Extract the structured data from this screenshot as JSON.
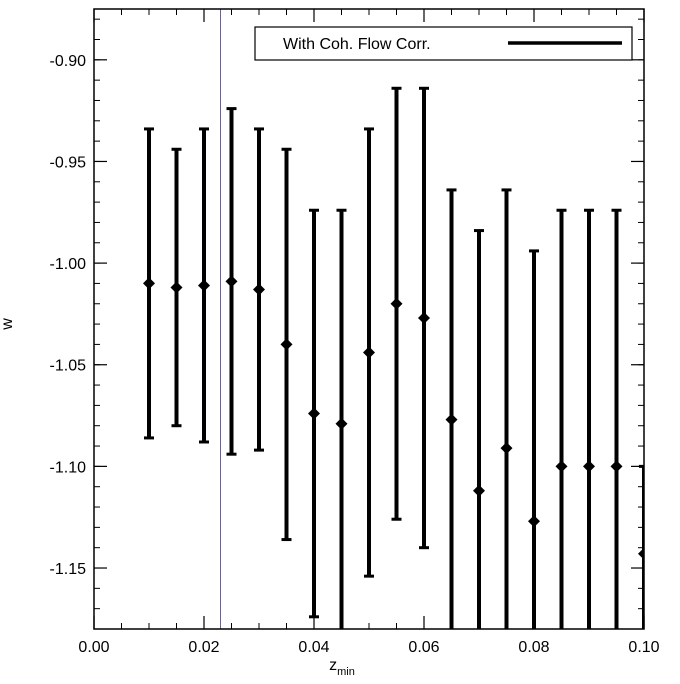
{
  "chart_data": {
    "type": "scatter",
    "title": "",
    "xlabel": "z",
    "xlabel_subscript": "min",
    "ylabel": "w",
    "xlim": [
      0.0,
      0.1
    ],
    "ylim": [
      -1.18,
      -0.875
    ],
    "x_ticks": [
      0.0,
      0.02,
      0.04,
      0.06,
      0.08,
      0.1
    ],
    "x_tick_labels": [
      "0.00",
      "0.02",
      "0.04",
      "0.06",
      "0.08",
      "0.10"
    ],
    "x_minor_step": 0.005,
    "y_ticks": [
      -0.9,
      -0.95,
      -1.0,
      -1.05,
      -1.1,
      -1.15
    ],
    "y_tick_labels": [
      "-0.90",
      "-0.95",
      "-1.00",
      "-1.05",
      "-1.10",
      "-1.15"
    ],
    "y_minor_step": 0.01,
    "grid": false,
    "reference_line": {
      "x": 0.023,
      "color": "#6a5fa8"
    },
    "legend": {
      "position": "top-right",
      "entries": [
        "With Coh. Flow Corr."
      ]
    },
    "series": [
      {
        "name": "With Coh. Flow Corr.",
        "color": "#000000",
        "points": [
          {
            "x": 0.01,
            "y": -1.01,
            "ylow": -1.086,
            "yhigh": -0.934
          },
          {
            "x": 0.015,
            "y": -1.012,
            "ylow": -1.08,
            "yhigh": -0.944
          },
          {
            "x": 0.02,
            "y": -1.011,
            "ylow": -1.088,
            "yhigh": -0.934
          },
          {
            "x": 0.025,
            "y": -1.009,
            "ylow": -1.094,
            "yhigh": -0.924
          },
          {
            "x": 0.03,
            "y": -1.013,
            "ylow": -1.092,
            "yhigh": -0.934
          },
          {
            "x": 0.035,
            "y": -1.04,
            "ylow": -1.136,
            "yhigh": -0.944
          },
          {
            "x": 0.04,
            "y": -1.074,
            "ylow": -1.174,
            "yhigh": -0.974
          },
          {
            "x": 0.045,
            "y": -1.079,
            "ylow": -1.19,
            "yhigh": -0.974
          },
          {
            "x": 0.05,
            "y": -1.044,
            "ylow": -1.154,
            "yhigh": -0.934
          },
          {
            "x": 0.055,
            "y": -1.02,
            "ylow": -1.126,
            "yhigh": -0.914
          },
          {
            "x": 0.06,
            "y": -1.027,
            "ylow": -1.14,
            "yhigh": -0.914
          },
          {
            "x": 0.065,
            "y": -1.077,
            "ylow": -1.19,
            "yhigh": -0.964
          },
          {
            "x": 0.07,
            "y": -1.112,
            "ylow": -1.19,
            "yhigh": -0.984
          },
          {
            "x": 0.075,
            "y": -1.091,
            "ylow": -1.19,
            "yhigh": -0.964
          },
          {
            "x": 0.08,
            "y": -1.127,
            "ylow": -1.19,
            "yhigh": -0.994
          },
          {
            "x": 0.085,
            "y": -1.1,
            "ylow": -1.19,
            "yhigh": -0.974
          },
          {
            "x": 0.09,
            "y": -1.1,
            "ylow": -1.19,
            "yhigh": -0.974
          },
          {
            "x": 0.095,
            "y": -1.1,
            "ylow": -1.19,
            "yhigh": -0.974
          },
          {
            "x": 0.1,
            "y": -1.143,
            "ylow": -1.19,
            "yhigh": -1.1
          }
        ]
      }
    ]
  }
}
